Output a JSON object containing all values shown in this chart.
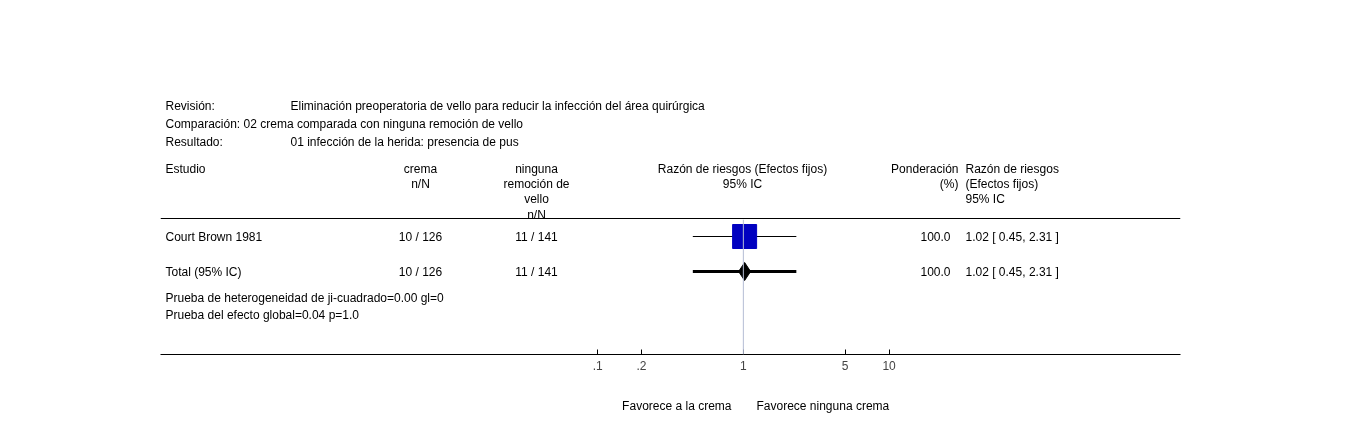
{
  "chart_data": {
    "type": "scatter",
    "orientation": "horizontal",
    "log": "x",
    "categories": [
      "Court Brown 1981",
      "Total (95% IC)"
    ],
    "series": [
      {
        "marker": "square",
        "color": "#0000c0",
        "values": [
          1.02,
          null
        ],
        "errors": [
          [
            0.45,
            2.31
          ],
          null
        ]
      },
      {
        "marker": "diamond",
        "color": "#000000",
        "values": [
          null,
          1.02
        ],
        "errors": [
          null,
          [
            0.45,
            2.31
          ]
        ]
      }
    ],
    "xlim": [
      0.0001,
      1000
    ],
    "xticks": [
      {
        "value": 0.1,
        "label": ".1"
      },
      {
        "value": 0.2,
        "label": ".2"
      },
      1,
      5,
      10
    ],
    "ref_lines": [
      {
        "axis": "x",
        "value": 1,
        "color": "#b4bcd4"
      }
    ],
    "tick_labels": "x",
    "grid": false,
    "annotations": [
      "Revisión:",
      "Eliminación preoperatoria de vello para reducir la infección del área quirúrgica",
      "Comparación: 02 crema comparada con ninguna remoción de vello",
      "Resultado:",
      "01 infección de la herida: presencia de pus",
      "Estudio",
      "crema\nn/N",
      "ninguna\nremoción de\nvello\nn/N",
      "Razón de riesgos (Efectos fijos)\n95% IC",
      "Ponderación\n(%)",
      "Razón de riesgos\n(Efectos fijos)\n95% IC",
      "10 / 126",
      "11 / 141",
      "100.0",
      "1.02 [ 0.45, 2.31 ]",
      "10 / 126",
      "11 / 141",
      "100.0",
      "1.02 [ 0.45, 2.31 ]",
      "Prueba de heterogeneidad de ji-cuadrado=0.00 gl=0",
      "Prueba del efecto global=0.04 p=1.0",
      "Favorece a la crema",
      "Favorece ninguna crema"
    ]
  }
}
